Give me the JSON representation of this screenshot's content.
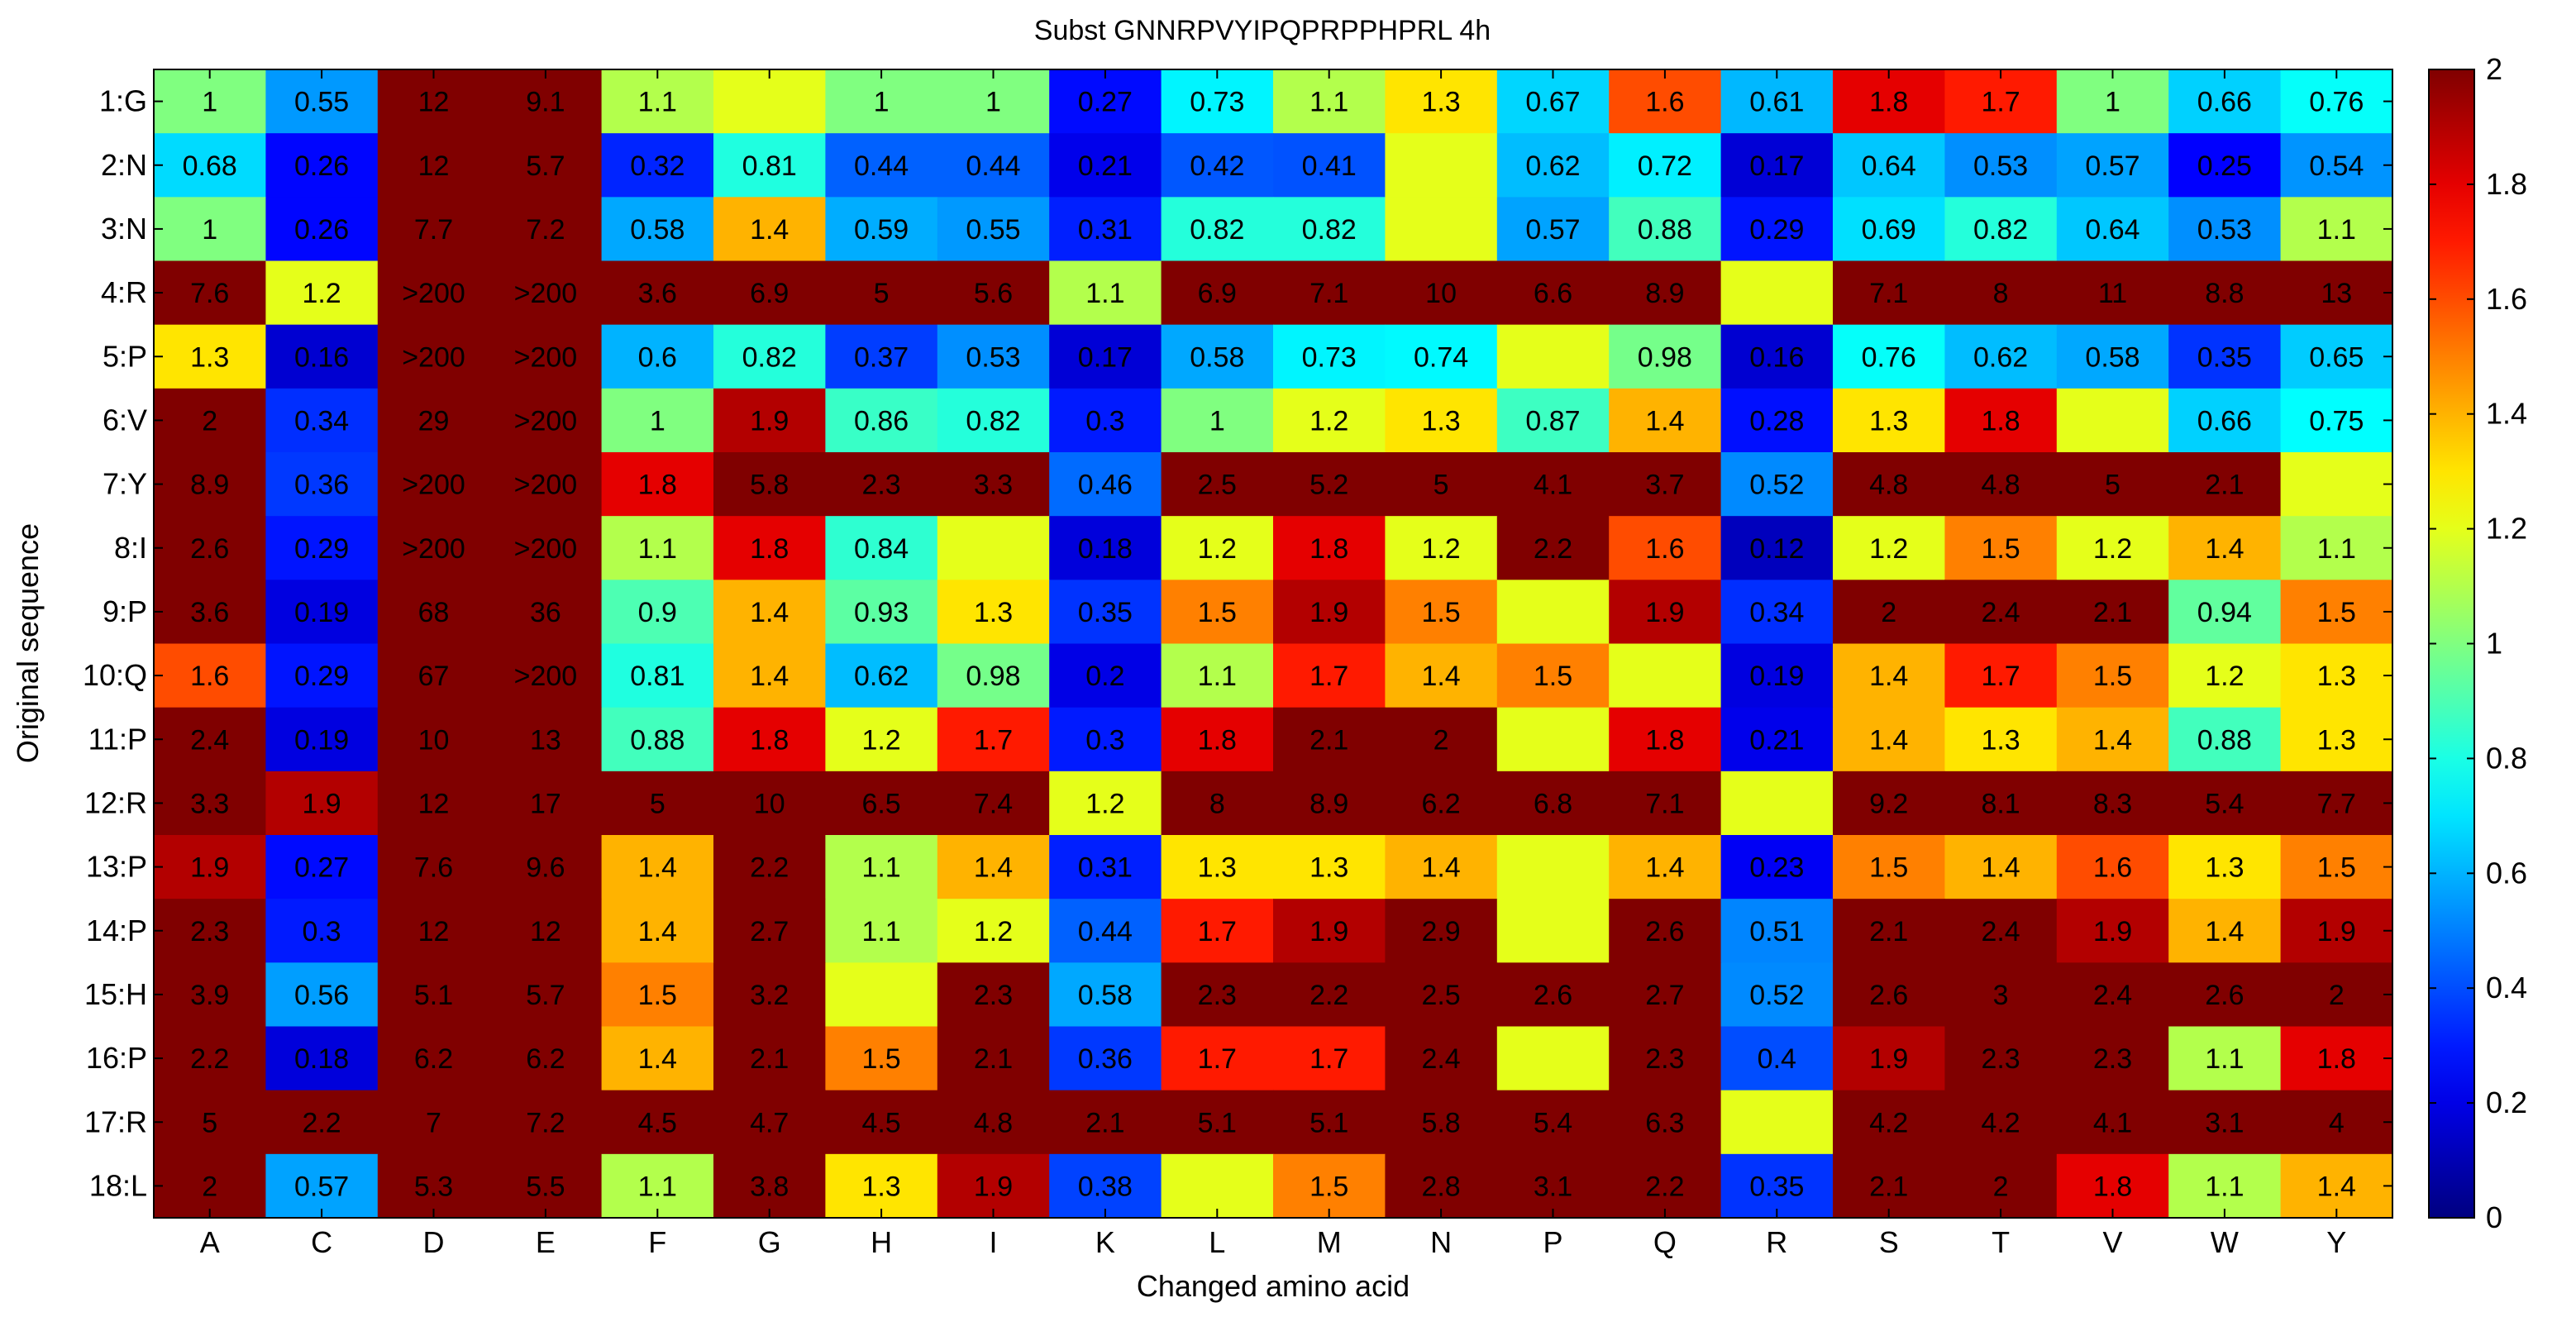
{
  "chart_data": {
    "type": "heatmap",
    "title": "Subst GNNRPVYIPQPRPPHPRL 4h",
    "xlabel": "Changed amino acid",
    "ylabel": "Original sequence",
    "x_categories": [
      "A",
      "C",
      "D",
      "E",
      "F",
      "G",
      "H",
      "I",
      "K",
      "L",
      "M",
      "N",
      "P",
      "Q",
      "R",
      "S",
      "T",
      "V",
      "W",
      "Y"
    ],
    "y_categories": [
      "1:G",
      "2:N",
      "3:N",
      "4:R",
      "5:P",
      "6:V",
      "7:Y",
      "8:I",
      "9:P",
      "10:Q",
      "11:P",
      "12:R",
      "13:P",
      "14:P",
      "15:H",
      "16:P",
      "17:R",
      "18:L"
    ],
    "colorbar": {
      "min": 0,
      "max": 2,
      "ticks": [
        "0",
        "0.2",
        "0.4",
        "0.6",
        "0.8",
        "1",
        "1.2",
        "1.4",
        "1.6",
        "1.8",
        "2"
      ]
    },
    "labels": [
      [
        "1",
        "0.55",
        "12",
        "9.1",
        "1.1",
        "",
        "1",
        "1",
        "0.27",
        "0.73",
        "1.1",
        "1.3",
        "0.67",
        "1.6",
        "0.61",
        "1.8",
        "1.7",
        "1",
        "0.66",
        "0.76"
      ],
      [
        "0.68",
        "0.26",
        "12",
        "5.7",
        "0.32",
        "0.81",
        "0.44",
        "0.44",
        "0.21",
        "0.42",
        "0.41",
        "",
        "0.62",
        "0.72",
        "0.17",
        "0.64",
        "0.53",
        "0.57",
        "0.25",
        "0.54"
      ],
      [
        "1",
        "0.26",
        "7.7",
        "7.2",
        "0.58",
        "1.4",
        "0.59",
        "0.55",
        "0.31",
        "0.82",
        "0.82",
        "",
        "0.57",
        "0.88",
        "0.29",
        "0.69",
        "0.82",
        "0.64",
        "0.53",
        "1.1"
      ],
      [
        "7.6",
        "1.2",
        ">200",
        ">200",
        "3.6",
        "6.9",
        "5",
        "5.6",
        "1.1",
        "6.9",
        "7.1",
        "10",
        "6.6",
        "8.9",
        "",
        "7.1",
        "8",
        "11",
        "8.8",
        "13"
      ],
      [
        "1.3",
        "0.16",
        ">200",
        ">200",
        "0.6",
        "0.82",
        "0.37",
        "0.53",
        "0.17",
        "0.58",
        "0.73",
        "0.74",
        "",
        "0.98",
        "0.16",
        "0.76",
        "0.62",
        "0.58",
        "0.35",
        "0.65"
      ],
      [
        "2",
        "0.34",
        "29",
        ">200",
        "1",
        "1.9",
        "0.86",
        "0.82",
        "0.3",
        "1",
        "1.2",
        "1.3",
        "0.87",
        "1.4",
        "0.28",
        "1.3",
        "1.8",
        "",
        "0.66",
        "0.75"
      ],
      [
        "8.9",
        "0.36",
        ">200",
        ">200",
        "1.8",
        "5.8",
        "2.3",
        "3.3",
        "0.46",
        "2.5",
        "5.2",
        "5",
        "4.1",
        "3.7",
        "0.52",
        "4.8",
        "4.8",
        "5",
        "2.1",
        ""
      ],
      [
        "2.6",
        "0.29",
        ">200",
        ">200",
        "1.1",
        "1.8",
        "0.84",
        "",
        "0.18",
        "1.2",
        "1.8",
        "1.2",
        "2.2",
        "1.6",
        "0.12",
        "1.2",
        "1.5",
        "1.2",
        "1.4",
        "1.1"
      ],
      [
        "3.6",
        "0.19",
        "68",
        "36",
        "0.9",
        "1.4",
        "0.93",
        "1.3",
        "0.35",
        "1.5",
        "1.9",
        "1.5",
        "",
        "1.9",
        "0.34",
        "2",
        "2.4",
        "2.1",
        "0.94",
        "1.5"
      ],
      [
        "1.6",
        "0.29",
        "67",
        ">200",
        "0.81",
        "1.4",
        "0.62",
        "0.98",
        "0.2",
        "1.1",
        "1.7",
        "1.4",
        "1.5",
        "",
        "0.19",
        "1.4",
        "1.7",
        "1.5",
        "1.2",
        "1.3"
      ],
      [
        "2.4",
        "0.19",
        "10",
        "13",
        "0.88",
        "1.8",
        "1.2",
        "1.7",
        "0.3",
        "1.8",
        "2.1",
        "2",
        "",
        "1.8",
        "0.21",
        "1.4",
        "1.3",
        "1.4",
        "0.88",
        "1.3"
      ],
      [
        "3.3",
        "1.9",
        "12",
        "17",
        "5",
        "10",
        "6.5",
        "7.4",
        "1.2",
        "8",
        "8.9",
        "6.2",
        "6.8",
        "7.1",
        "",
        "9.2",
        "8.1",
        "8.3",
        "5.4",
        "7.7"
      ],
      [
        "1.9",
        "0.27",
        "7.6",
        "9.6",
        "1.4",
        "2.2",
        "1.1",
        "1.4",
        "0.31",
        "1.3",
        "1.3",
        "1.4",
        "",
        "1.4",
        "0.23",
        "1.5",
        "1.4",
        "1.6",
        "1.3",
        "1.5"
      ],
      [
        "2.3",
        "0.3",
        "12",
        "12",
        "1.4",
        "2.7",
        "1.1",
        "1.2",
        "0.44",
        "1.7",
        "1.9",
        "2.9",
        "",
        "2.6",
        "0.51",
        "2.1",
        "2.4",
        "1.9",
        "1.4",
        "1.9"
      ],
      [
        "3.9",
        "0.56",
        "5.1",
        "5.7",
        "1.5",
        "3.2",
        "",
        "2.3",
        "0.58",
        "2.3",
        "2.2",
        "2.5",
        "2.6",
        "2.7",
        "0.52",
        "2.6",
        "3",
        "2.4",
        "2.6",
        "2"
      ],
      [
        "2.2",
        "0.18",
        "6.2",
        "6.2",
        "1.4",
        "2.1",
        "1.5",
        "2.1",
        "0.36",
        "1.7",
        "1.7",
        "2.4",
        "",
        "2.3",
        "0.4",
        "1.9",
        "2.3",
        "2.3",
        "1.1",
        "1.8"
      ],
      [
        "5",
        "2.2",
        "7",
        "7.2",
        "4.5",
        "4.7",
        "4.5",
        "4.8",
        "2.1",
        "5.1",
        "5.1",
        "5.8",
        "5.4",
        "6.3",
        "",
        "4.2",
        "4.2",
        "4.1",
        "3.1",
        "4"
      ],
      [
        "2",
        "0.57",
        "5.3",
        "5.5",
        "1.1",
        "3.8",
        "1.3",
        "1.9",
        "0.38",
        "",
        "1.5",
        "2.8",
        "3.1",
        "2.2",
        "0.35",
        "2.1",
        "2",
        "1.8",
        "1.1",
        "1.4"
      ]
    ]
  }
}
